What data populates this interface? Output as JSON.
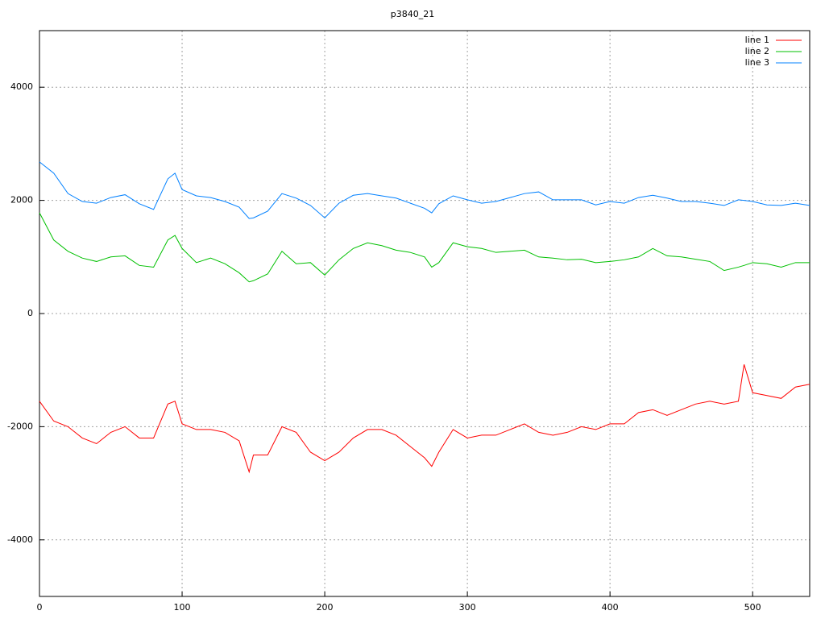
{
  "chart_data": {
    "type": "line",
    "title": "p3840_21",
    "x": [
      0,
      10,
      20,
      30,
      40,
      50,
      60,
      70,
      80,
      90,
      95,
      100,
      110,
      120,
      130,
      140,
      147,
      150,
      160,
      170,
      180,
      190,
      200,
      210,
      220,
      230,
      240,
      250,
      260,
      270,
      275,
      280,
      290,
      300,
      310,
      320,
      330,
      340,
      350,
      360,
      370,
      380,
      390,
      400,
      410,
      420,
      430,
      440,
      450,
      460,
      470,
      480,
      490,
      494,
      500,
      510,
      520,
      530,
      540
    ],
    "series": [
      {
        "name": "line 1",
        "color": "#ff0000",
        "values": [
          -1550,
          -1900,
          -2000,
          -2200,
          -2300,
          -2100,
          -2000,
          -2200,
          -2200,
          -1600,
          -1550,
          -1950,
          -2050,
          -2050,
          -2100,
          -2250,
          -2800,
          -2500,
          -2500,
          -2000,
          -2100,
          -2450,
          -2600,
          -2450,
          -2200,
          -2050,
          -2050,
          -2150,
          -2350,
          -2550,
          -2700,
          -2450,
          -2050,
          -2200,
          -2150,
          -2150,
          -2050,
          -1950,
          -2100,
          -2150,
          -2100,
          -2000,
          -2050,
          -1950,
          -1950,
          -1750,
          -1700,
          -1800,
          -1700,
          -1600,
          -1550,
          -1600,
          -1550,
          -900,
          -1400,
          -1450,
          -1500,
          -1300,
          -1250
        ]
      },
      {
        "name": "line 2",
        "color": "#00c000",
        "values": [
          1780,
          1300,
          1100,
          980,
          920,
          1000,
          1020,
          850,
          820,
          1300,
          1380,
          1150,
          900,
          980,
          880,
          720,
          560,
          580,
          700,
          1100,
          880,
          900,
          680,
          950,
          1150,
          1250,
          1200,
          1120,
          1080,
          1000,
          820,
          900,
          1250,
          1180,
          1150,
          1080,
          1100,
          1120,
          1000,
          980,
          950,
          960,
          900,
          920,
          950,
          1000,
          1150,
          1020,
          1000,
          960,
          920,
          760,
          820,
          850,
          900,
          880,
          820,
          900,
          900
        ]
      },
      {
        "name": "line 3",
        "color": "#0080ff",
        "values": [
          2680,
          2480,
          2120,
          1980,
          1950,
          2050,
          2100,
          1940,
          1840,
          2380,
          2480,
          2190,
          2080,
          2050,
          1980,
          1880,
          1680,
          1690,
          1810,
          2120,
          2040,
          1910,
          1690,
          1950,
          2090,
          2120,
          2080,
          2040,
          1950,
          1860,
          1780,
          1940,
          2080,
          2010,
          1950,
          1980,
          2050,
          2120,
          2150,
          2010,
          2010,
          2010,
          1920,
          1980,
          1950,
          2050,
          2090,
          2040,
          1980,
          1980,
          1950,
          1910,
          2010,
          2000,
          1980,
          1920,
          1910,
          1950,
          1910
        ]
      }
    ],
    "xlim": [
      0,
      540
    ],
    "ylim": [
      -5000,
      5000
    ],
    "xticks": [
      0,
      100,
      200,
      300,
      400,
      500
    ],
    "yticks": [
      -4000,
      -2000,
      0,
      2000,
      4000
    ],
    "grid": true,
    "legend": "top-right"
  }
}
